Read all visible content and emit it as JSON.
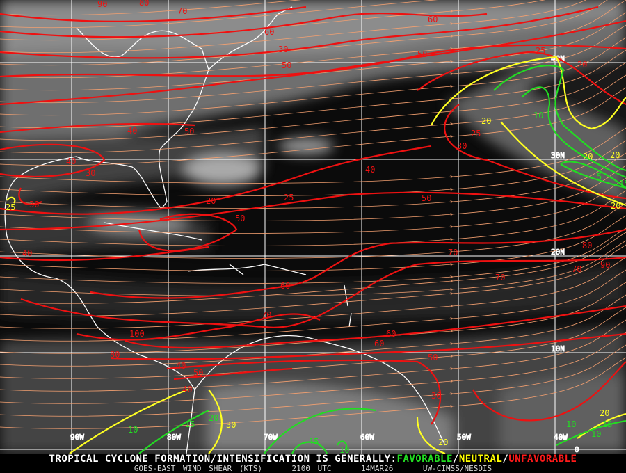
{
  "map": {
    "product": "GOES-EAST WIND SHEAR (KTS)",
    "time": "2100 UTC",
    "date": "14MAR26",
    "source": "UW-CIMSS/NESDIS",
    "headline": "TROPICAL CYCLONE FORMATION/INTENSIFICATION IS GENERALLY:",
    "categories": [
      {
        "label": "FAVORABLE",
        "color": "#22dd22"
      },
      {
        "label": "NEUTRAL",
        "color": "#ffff00"
      },
      {
        "label": "UNFAVORABLE",
        "color": "#ff1a1a"
      }
    ],
    "separator": "/",
    "longitude_labels": [
      "90W",
      "80W",
      "70W",
      "60W",
      "50W",
      "40W"
    ],
    "latitude_labels": [
      "40N",
      "30N",
      "20N",
      "10N",
      "0"
    ],
    "contour_labels": [
      "90",
      "80",
      "70",
      "60",
      "60",
      "50",
      "50",
      "40",
      "30",
      "25",
      "20",
      "15",
      "10",
      "5",
      "20",
      "20",
      "25",
      "30",
      "50",
      "40",
      "40",
      "30",
      "25",
      "30",
      "20",
      "25",
      "50",
      "50",
      "40",
      "70",
      "70",
      "60",
      "70",
      "70",
      "60",
      "80",
      "90",
      "100",
      "80",
      "60",
      "50",
      "40",
      "50",
      "40",
      "30",
      "30",
      "20",
      "15",
      "10",
      "15",
      "20",
      "10",
      "10",
      "15",
      "10",
      "20",
      "20",
      "20"
    ],
    "streamline_color": "#f4a070",
    "background": "GOES-East water vapor imagery"
  }
}
